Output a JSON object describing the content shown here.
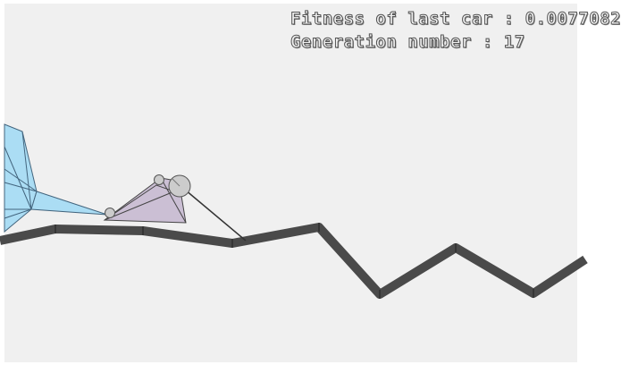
{
  "hud": {
    "fitness_label": "Fitness of last car",
    "fitness_value": "0.0077082",
    "generation_label": "Generation number",
    "generation_value": "17"
  },
  "colors": {
    "background": "#f0f0f0",
    "track": "#4a4a4a",
    "previous_car_body": "#a8dcf5",
    "current_car_body": "#cbbfd4",
    "wheel": "#cccccc",
    "outline": "#555555"
  }
}
